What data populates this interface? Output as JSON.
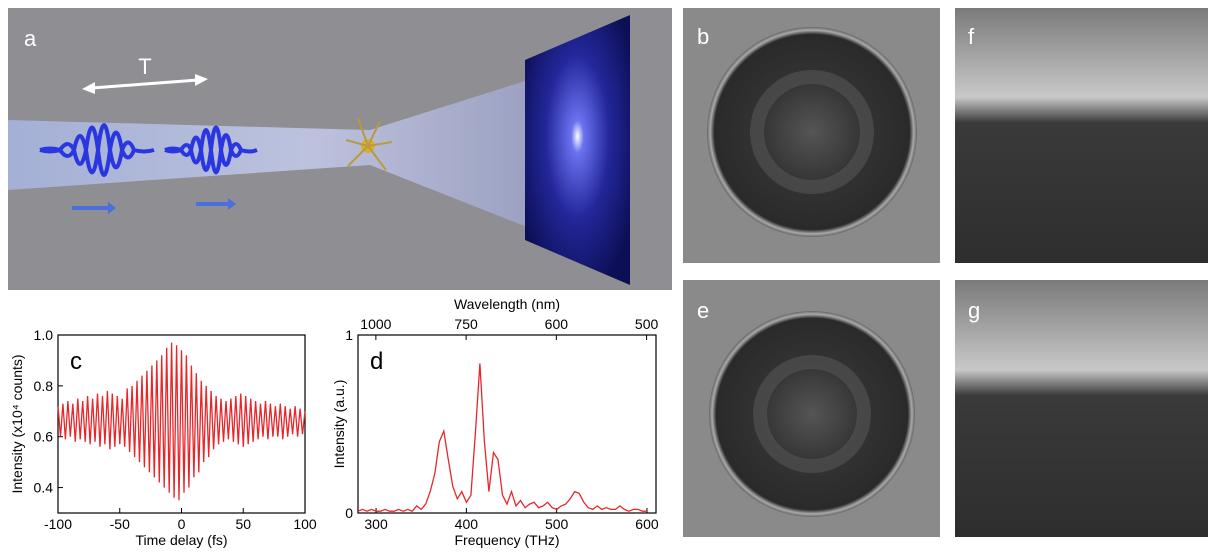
{
  "panel_labels": [
    "a",
    "b",
    "e",
    "f",
    "g"
  ],
  "annotation": "T",
  "chart_data": [
    {
      "type": "line",
      "title": "c",
      "xlabel": "Time delay (fs)",
      "ylabel": "Intensity (x10⁴ counts)",
      "color": "#e8262a",
      "xlim": [
        -100,
        100
      ],
      "xticks": [
        -100,
        -50,
        0,
        50,
        100
      ],
      "ylim": [
        0.3,
        1.0
      ],
      "yticks": [
        0.4,
        0.6,
        0.8,
        {
          "value": 1,
          "label": "1.0"
        }
      ],
      "x": [
        -100,
        -98,
        -96,
        -94,
        -92,
        -90,
        -88,
        -86,
        -84,
        -82,
        -80,
        -78,
        -76,
        -74,
        -72,
        -70,
        -68,
        -66,
        -64,
        -62,
        -60,
        -58,
        -56,
        -54,
        -52,
        -50,
        -48,
        -46,
        -44,
        -42,
        -40,
        -38,
        -36,
        -34,
        -32,
        -30,
        -28,
        -26,
        -24,
        -22,
        -20,
        -18,
        -16,
        -14,
        -12,
        -10,
        -8,
        -6,
        -4,
        -2,
        0,
        2,
        4,
        6,
        8,
        10,
        12,
        14,
        16,
        18,
        20,
        22,
        24,
        26,
        28,
        30,
        32,
        34,
        36,
        38,
        40,
        42,
        44,
        46,
        48,
        50,
        52,
        54,
        56,
        58,
        60,
        62,
        64,
        66,
        68,
        70,
        72,
        74,
        76,
        78,
        80,
        82,
        84,
        86,
        88,
        90,
        92,
        94,
        96,
        98,
        100
      ],
      "values": [
        0.72,
        0.6,
        0.73,
        0.59,
        0.74,
        0.6,
        0.73,
        0.58,
        0.75,
        0.59,
        0.74,
        0.58,
        0.76,
        0.57,
        0.75,
        0.58,
        0.77,
        0.56,
        0.76,
        0.57,
        0.78,
        0.55,
        0.77,
        0.56,
        0.76,
        0.57,
        0.75,
        0.56,
        0.79,
        0.54,
        0.8,
        0.52,
        0.82,
        0.5,
        0.84,
        0.48,
        0.86,
        0.46,
        0.88,
        0.44,
        0.9,
        0.42,
        0.92,
        0.4,
        0.95,
        0.38,
        0.97,
        0.36,
        0.96,
        0.35,
        0.94,
        0.38,
        0.92,
        0.4,
        0.88,
        0.44,
        0.85,
        0.46,
        0.82,
        0.5,
        0.8,
        0.52,
        0.78,
        0.55,
        0.76,
        0.57,
        0.75,
        0.58,
        0.74,
        0.59,
        0.75,
        0.58,
        0.76,
        0.57,
        0.77,
        0.56,
        0.76,
        0.57,
        0.75,
        0.58,
        0.74,
        0.59,
        0.73,
        0.6,
        0.74,
        0.59,
        0.73,
        0.6,
        0.72,
        0.6,
        0.73,
        0.59,
        0.72,
        0.6,
        0.71,
        0.61,
        0.72,
        0.6,
        0.71,
        0.61,
        0.7
      ]
    },
    {
      "type": "line",
      "title": "d",
      "xlabel": "Frequency (THz)",
      "ylabel": "Intensity (a.u.)",
      "x2label": "Wavelength (nm)",
      "color": "#e8262a",
      "xlim": [
        280,
        610
      ],
      "xticks": [
        300,
        400,
        500,
        600
      ],
      "x2ticks": [
        1000,
        750,
        600,
        500
      ],
      "ylim": [
        0,
        1
      ],
      "yticks": [
        0,
        1
      ],
      "x": [
        280,
        285,
        290,
        295,
        300,
        305,
        310,
        315,
        320,
        325,
        330,
        335,
        340,
        345,
        350,
        355,
        360,
        365,
        370,
        375,
        380,
        385,
        390,
        395,
        400,
        405,
        410,
        415,
        420,
        425,
        430,
        435,
        440,
        445,
        450,
        455,
        460,
        465,
        470,
        475,
        480,
        485,
        490,
        495,
        500,
        505,
        510,
        515,
        520,
        525,
        530,
        535,
        540,
        545,
        550,
        555,
        560,
        565,
        570,
        575,
        580,
        585,
        590,
        595,
        600
      ],
      "values": [
        0.01,
        0.02,
        0.01,
        0.02,
        0.01,
        0.01,
        0.02,
        0.01,
        0.01,
        0.02,
        0.01,
        0.02,
        0.01,
        0.04,
        0.02,
        0.05,
        0.12,
        0.22,
        0.4,
        0.46,
        0.3,
        0.15,
        0.08,
        0.12,
        0.06,
        0.1,
        0.45,
        0.84,
        0.4,
        0.12,
        0.34,
        0.3,
        0.1,
        0.05,
        0.12,
        0.04,
        0.07,
        0.03,
        0.05,
        0.06,
        0.03,
        0.04,
        0.06,
        0.03,
        0.02,
        0.04,
        0.05,
        0.08,
        0.12,
        0.11,
        0.06,
        0.03,
        0.02,
        0.04,
        0.02,
        0.03,
        0.02,
        0.02,
        0.04,
        0.02,
        0.01,
        0.02,
        0.02,
        0.01,
        0.01
      ]
    }
  ]
}
